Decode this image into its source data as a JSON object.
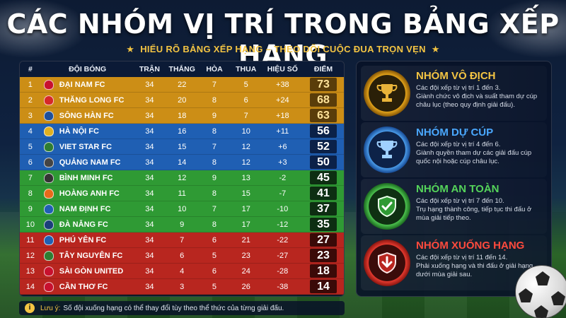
{
  "title": "CÁC NHÓM VỊ TRÍ TRONG BẢNG XẾP HẠNG",
  "subtitle": "HIỂU RÕ BẢNG XẾP HẠNG – THEO DÕI CUỘC ĐUA TRỌN VẸN",
  "table": {
    "headers": [
      "#",
      "ĐỘI BÓNG",
      "TRẬN",
      "THẮNG",
      "HÒA",
      "THUA",
      "HIỆU SỐ",
      "ĐIỂM"
    ],
    "rows": [
      {
        "rank": "1",
        "team": "ĐẠI NAM FC",
        "played": "34",
        "won": "22",
        "drawn": "7",
        "lost": "5",
        "gd": "+38",
        "pts": "73",
        "group": "gold",
        "badge_color": "#c8102e"
      },
      {
        "rank": "2",
        "team": "THĂNG LONG FC",
        "played": "34",
        "won": "20",
        "drawn": "8",
        "lost": "6",
        "gd": "+24",
        "pts": "68",
        "group": "gold",
        "badge_color": "#d62828"
      },
      {
        "rank": "3",
        "team": "SÔNG HÀN FC",
        "played": "34",
        "won": "18",
        "drawn": "9",
        "lost": "7",
        "gd": "+18",
        "pts": "63",
        "group": "gold",
        "badge_color": "#1d4f9a"
      },
      {
        "rank": "4",
        "team": "HÀ NỘI FC",
        "played": "34",
        "won": "16",
        "drawn": "8",
        "lost": "10",
        "gd": "+11",
        "pts": "56",
        "group": "blue",
        "badge_color": "#e0b020"
      },
      {
        "rank": "5",
        "team": "VIET STAR FC",
        "played": "34",
        "won": "15",
        "drawn": "7",
        "lost": "12",
        "gd": "+6",
        "pts": "52",
        "group": "blue",
        "badge_color": "#2e7d32"
      },
      {
        "rank": "6",
        "team": "QUẢNG NAM FC",
        "played": "34",
        "won": "14",
        "drawn": "8",
        "lost": "12",
        "gd": "+3",
        "pts": "50",
        "group": "blue",
        "badge_color": "#444444"
      },
      {
        "rank": "7",
        "team": "BÌNH MINH FC",
        "played": "34",
        "won": "12",
        "drawn": "9",
        "lost": "13",
        "gd": "-2",
        "pts": "45",
        "group": "green",
        "badge_color": "#333333"
      },
      {
        "rank": "8",
        "team": "HOÀNG ANH FC",
        "played": "34",
        "won": "11",
        "drawn": "8",
        "lost": "15",
        "gd": "-7",
        "pts": "41",
        "group": "green",
        "badge_color": "#e86a1a"
      },
      {
        "rank": "9",
        "team": "NAM ĐỊNH FC",
        "played": "34",
        "won": "10",
        "drawn": "7",
        "lost": "17",
        "gd": "-10",
        "pts": "37",
        "group": "green",
        "badge_color": "#1f5fb3"
      },
      {
        "rank": "10",
        "team": "ĐÀ NẴNG FC",
        "played": "34",
        "won": "9",
        "drawn": "8",
        "lost": "17",
        "gd": "-12",
        "pts": "35",
        "group": "green",
        "badge_color": "#1a3f7a"
      },
      {
        "rank": "11",
        "team": "PHÚ YÊN FC",
        "played": "34",
        "won": "7",
        "drawn": "6",
        "lost": "21",
        "gd": "-22",
        "pts": "27",
        "group": "red",
        "badge_color": "#1f5fb3"
      },
      {
        "rank": "12",
        "team": "TÂY NGUYÊN FC",
        "played": "34",
        "won": "6",
        "drawn": "5",
        "lost": "23",
        "gd": "-27",
        "pts": "23",
        "group": "red",
        "badge_color": "#2e7d32"
      },
      {
        "rank": "13",
        "team": "SÀI GÒN UNITED",
        "played": "34",
        "won": "4",
        "drawn": "6",
        "lost": "24",
        "gd": "-28",
        "pts": "18",
        "group": "red",
        "badge_color": "#c8102e"
      },
      {
        "rank": "14",
        "team": "CẦN THƠ FC",
        "played": "34",
        "won": "3",
        "drawn": "5",
        "lost": "26",
        "gd": "-38",
        "pts": "14",
        "group": "red",
        "badge_color": "#c8102e"
      }
    ]
  },
  "groups": [
    {
      "title": "NHÓM VÔ ĐỊCH",
      "desc1": "Các đội xếp từ vị trí 1 đến 3.",
      "desc2": "Giành chức vô địch và suất tham dự cúp châu lục (theo quy định giải đấu).",
      "color": "gold",
      "icon": "trophy-icon"
    },
    {
      "title": "NHÓM DỰ CÚP",
      "desc1": "Các đội xếp từ vị trí 4 đến 6.",
      "desc2": "Giành quyền tham dự các giải đấu cúp quốc nội hoặc cúp châu lục.",
      "color": "blue",
      "icon": "cup-icon"
    },
    {
      "title": "NHÓM AN TOÀN",
      "desc1": "Các đội xếp từ vị trí 7 đến 10.",
      "desc2": "Trụ hạng thành công, tiếp tục thi đấu ở mùa giải tiếp theo.",
      "color": "green",
      "icon": "shield-check-icon"
    },
    {
      "title": "NHÓM XUỐNG HẠNG",
      "desc1": "Các đội xếp từ vị trí 11 đến 14.",
      "desc2": "Phải xuống hạng và thi đấu ở giải hạng dưới mùa giải sau.",
      "color": "red",
      "icon": "shield-arrow-down-icon"
    }
  ],
  "note": {
    "label": "Lưu ý:",
    "text": "Số đội xuống hạng có thể thay đổi tùy theo thể thức của từng giải đấu."
  }
}
